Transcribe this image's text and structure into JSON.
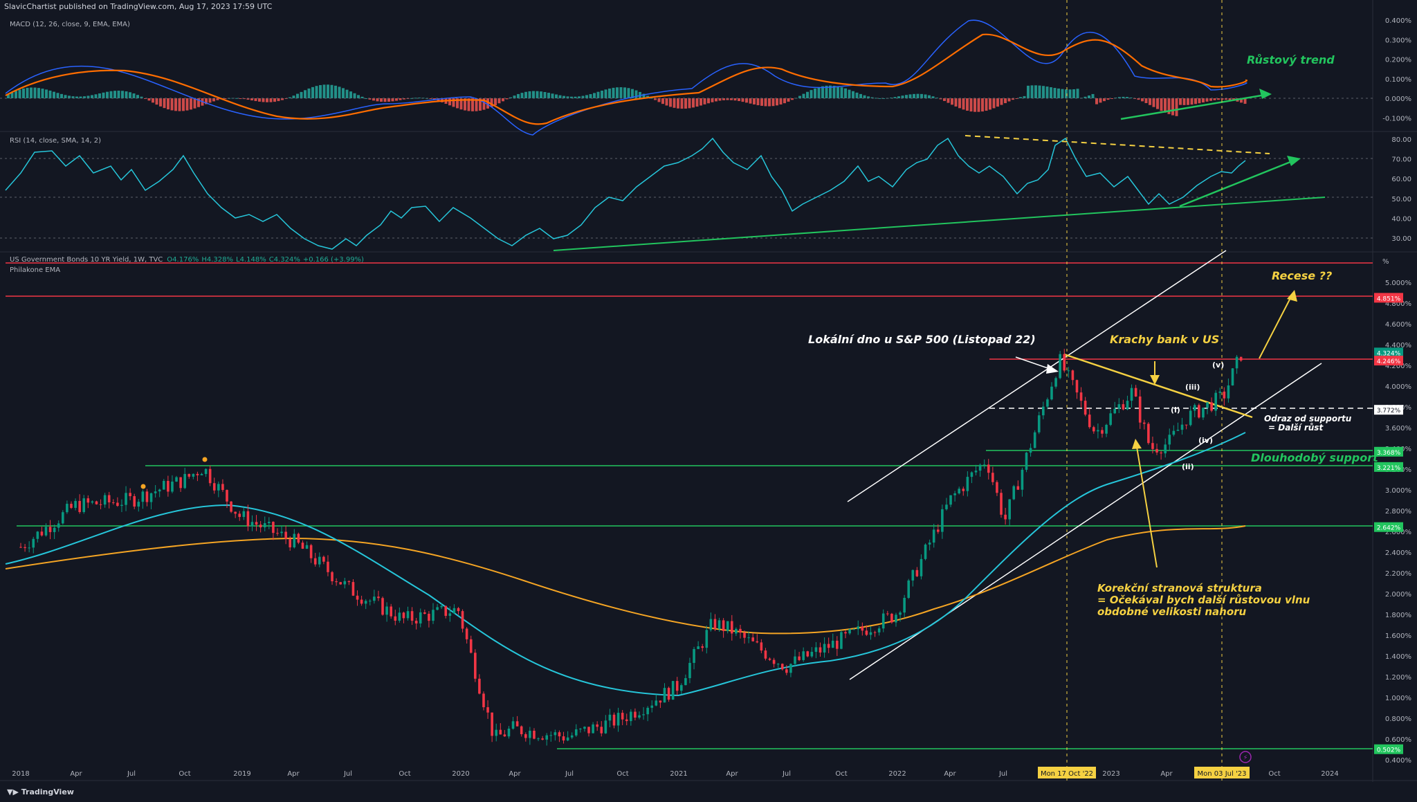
{
  "header": "SlavicChartist published on TradingView.com, Aug 17, 2023 17:59 UTC",
  "footer_logo": "TradingView",
  "macd": {
    "label": "MACD (12, 26, close, 9, EMA, EMA)",
    "ticks": [
      "0.400%",
      "0.300%",
      "0.200%",
      "0.100%",
      "0.000%",
      "-0.100%"
    ],
    "annotation": "Růstový trend"
  },
  "rsi": {
    "label": "RSI (14, close, SMA, 14, 2)",
    "ticks": [
      "80.00",
      "70.00",
      "60.00",
      "50.00",
      "40.00",
      "30.00"
    ]
  },
  "main": {
    "label": "US Government Bonds 10 YR Yield, 1W, TVC",
    "ohlc": {
      "O": "4.176%",
      "H": "4.328%",
      "L": "4.148%",
      "C": "4.324%",
      "chg": "+0.166 (+3.99%)"
    },
    "ema_label": "Philakone EMA",
    "unit": "%",
    "ticks": [
      "5.000%",
      "4.800%",
      "4.600%",
      "4.400%",
      "4.200%",
      "4.000%",
      "3.800%",
      "3.600%",
      "3.400%",
      "3.200%",
      "3.000%",
      "2.800%",
      "2.600%",
      "2.400%",
      "2.200%",
      "2.000%",
      "1.800%",
      "1.600%",
      "1.400%",
      "1.200%",
      "1.000%",
      "0.800%",
      "0.600%",
      "0.400%"
    ],
    "price_tags": [
      {
        "text": "4.851%",
        "color": "#f23645"
      },
      {
        "text": "4.324%",
        "color": "#089981"
      },
      {
        "text": "4.246%",
        "color": "#f23645"
      },
      {
        "text": "3.772%",
        "color": "#ffffff"
      },
      {
        "text": "3.368%",
        "color": "#22c55e"
      },
      {
        "text": "3.221%",
        "color": "#22c55e"
      },
      {
        "text": "2.642%",
        "color": "#22c55e"
      },
      {
        "text": "0.502%",
        "color": "#22c55e"
      }
    ],
    "annotations": {
      "local_bottom": "Lokální dno u S&P 500 (Listopad 22)",
      "bank_crash": "Krachy bank v US",
      "recession": "Recese ??",
      "bounce_1": "Odraz od supportu",
      "bounce_2": "= Další růst",
      "long_support": "Dlouhodobý support",
      "correction_1": "Korekční stranová struktura",
      "correction_2": "= Očekával bych další růstovou vlnu",
      "correction_3": "obdobné velikosti nahoru",
      "waves": [
        "(i)",
        "(ii)",
        "(iii)",
        "(iv)",
        "(v)"
      ]
    }
  },
  "x_axis": {
    "labels": [
      "2018",
      "Apr",
      "Jul",
      "Oct",
      "2019",
      "Apr",
      "Jul",
      "Oct",
      "2020",
      "Apr",
      "Jul",
      "Oct",
      "2021",
      "Apr",
      "Jul",
      "Oct",
      "2022",
      "Apr",
      "Jul",
      "2023",
      "Apr",
      "Oct",
      "2024"
    ],
    "markers": [
      "Mon 17 Oct '22",
      "Mon 03 Jul '23"
    ]
  },
  "chart_data": {
    "type": "line",
    "title": "US Government Bonds 10 YR Yield, 1W, TVC",
    "x": [
      "2018-01",
      "2018-04",
      "2018-07",
      "2018-10",
      "2018-11",
      "2019-01",
      "2019-04",
      "2019-07",
      "2019-10",
      "2020-01",
      "2020-03",
      "2020-04",
      "2020-07",
      "2020-10",
      "2021-01",
      "2021-03",
      "2021-04",
      "2021-07",
      "2021-10",
      "2022-01",
      "2022-04",
      "2022-06",
      "2022-07",
      "2022-10",
      "2022-12",
      "2023-02",
      "2023-03",
      "2023-04",
      "2023-05",
      "2023-07",
      "2023-08"
    ],
    "series": [
      {
        "values": [
          2.45,
          2.85,
          2.9,
          3.1,
          3.22,
          2.75,
          2.5,
          2.05,
          1.75,
          1.85,
          0.6,
          0.7,
          0.62,
          0.8,
          1.1,
          1.72,
          1.65,
          1.3,
          1.55,
          1.8,
          2.9,
          3.3,
          2.7,
          4.25,
          3.55,
          3.95,
          3.4,
          3.45,
          3.7,
          3.9,
          4.32
        ]
      }
    ],
    "ylim": [
      0.4,
      5.1
    ],
    "horizontal_levels": [
      4.851,
      4.246,
      3.772,
      3.368,
      3.221,
      2.642,
      0.502
    ]
  }
}
